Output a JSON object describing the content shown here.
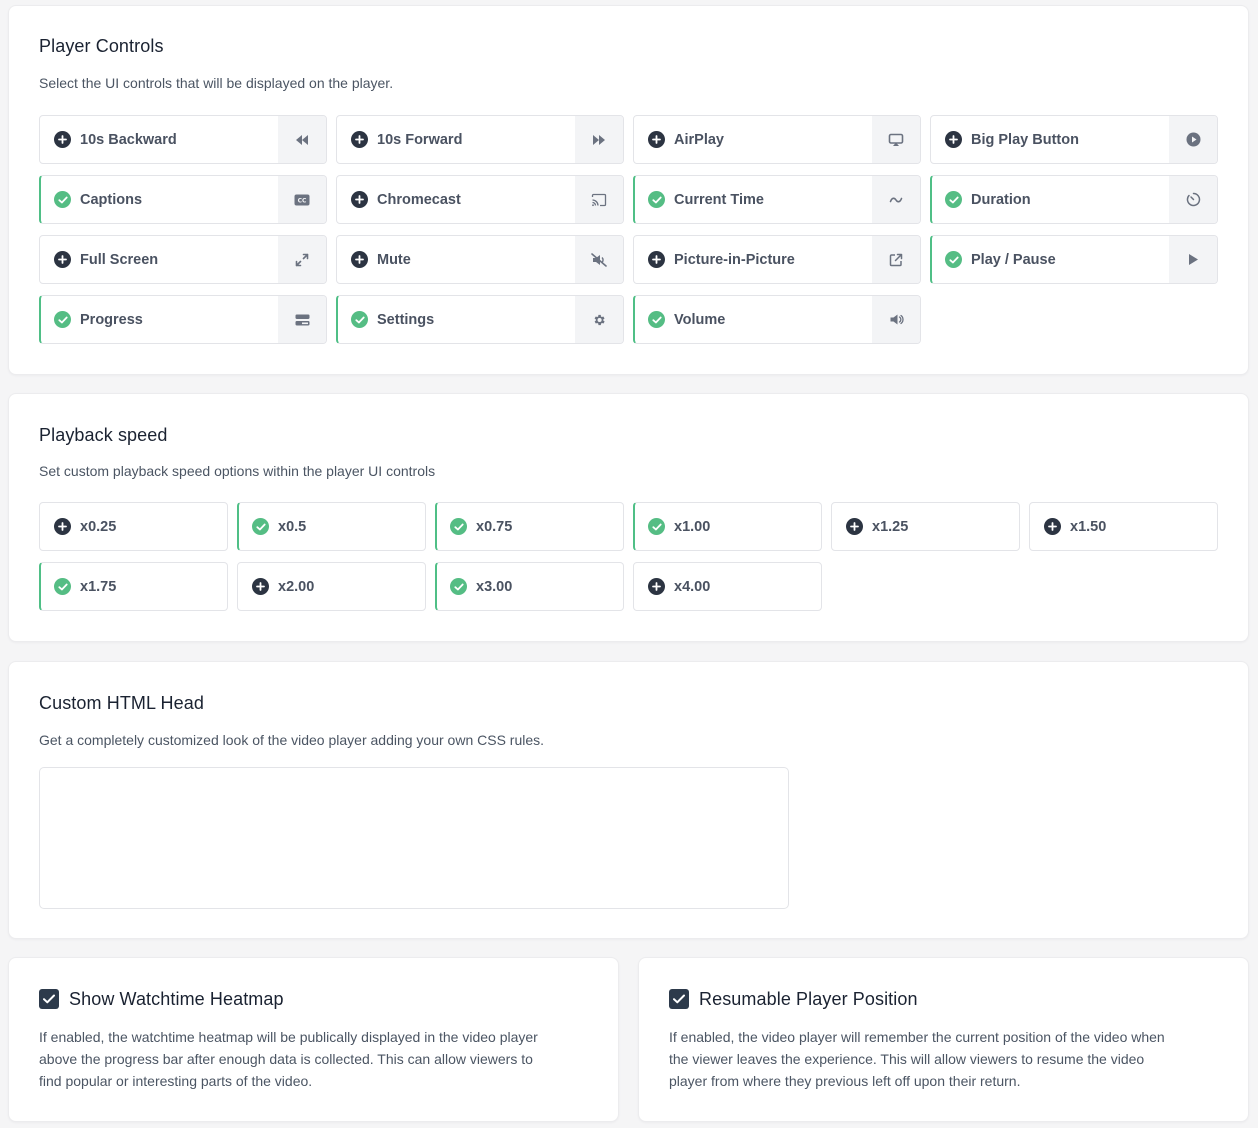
{
  "player_controls": {
    "title": "Player Controls",
    "description": "Select the UI controls that will be displayed on the player.",
    "items": [
      {
        "label": "10s Backward",
        "enabled": false,
        "icon": "rewind-icon"
      },
      {
        "label": "10s Forward",
        "enabled": false,
        "icon": "fast-forward-icon"
      },
      {
        "label": "AirPlay",
        "enabled": false,
        "icon": "airplay-icon"
      },
      {
        "label": "Big Play Button",
        "enabled": false,
        "icon": "play-circle-icon"
      },
      {
        "label": "Captions",
        "enabled": true,
        "icon": "closed-captions-icon"
      },
      {
        "label": "Chromecast",
        "enabled": false,
        "icon": "cast-icon"
      },
      {
        "label": "Current Time",
        "enabled": true,
        "icon": "tilde-icon"
      },
      {
        "label": "Duration",
        "enabled": true,
        "icon": "timer-icon"
      },
      {
        "label": "Full Screen",
        "enabled": false,
        "icon": "expand-icon"
      },
      {
        "label": "Mute",
        "enabled": false,
        "icon": "mute-icon"
      },
      {
        "label": "Picture-in-Picture",
        "enabled": false,
        "icon": "external-link-icon"
      },
      {
        "label": "Play / Pause",
        "enabled": true,
        "icon": "play-icon"
      },
      {
        "label": "Progress",
        "enabled": true,
        "icon": "progress-bar-icon"
      },
      {
        "label": "Settings",
        "enabled": true,
        "icon": "gear-icon"
      },
      {
        "label": "Volume",
        "enabled": true,
        "icon": "volume-icon"
      }
    ]
  },
  "playback_speed": {
    "title": "Playback speed",
    "description": "Set custom playback speed options within the player UI controls",
    "options": [
      {
        "label": "x0.25",
        "enabled": false
      },
      {
        "label": "x0.5",
        "enabled": true
      },
      {
        "label": "x0.75",
        "enabled": true
      },
      {
        "label": "x1.00",
        "enabled": true
      },
      {
        "label": "x1.25",
        "enabled": false
      },
      {
        "label": "x1.50",
        "enabled": false
      },
      {
        "label": "x1.75",
        "enabled": true
      },
      {
        "label": "x2.00",
        "enabled": false
      },
      {
        "label": "x3.00",
        "enabled": true
      },
      {
        "label": "x4.00",
        "enabled": false
      }
    ]
  },
  "custom_head": {
    "title": "Custom HTML Head",
    "description": "Get a completely customized look of the video player adding your own CSS rules.",
    "value": ""
  },
  "heatmap": {
    "title": "Show Watchtime Heatmap",
    "checked": true,
    "lines": [
      "If enabled, the watchtime heatmap will be publically displayed in the video player",
      "above the progress bar after enough data is collected. This can allow viewers to",
      "find popular or interesting parts of the video."
    ]
  },
  "resumable": {
    "title": "Resumable Player Position",
    "checked": true,
    "lines": [
      "If enabled, the video player will remember the current position of the video when",
      "the viewer leaves the experience. This will allow viewers to resume the video",
      "player from where they previous left off upon their return."
    ]
  },
  "colors": {
    "enabled_accent": "#4fbf86",
    "add_badge": "#2c3442",
    "checkbox": "#2d3a4b"
  }
}
